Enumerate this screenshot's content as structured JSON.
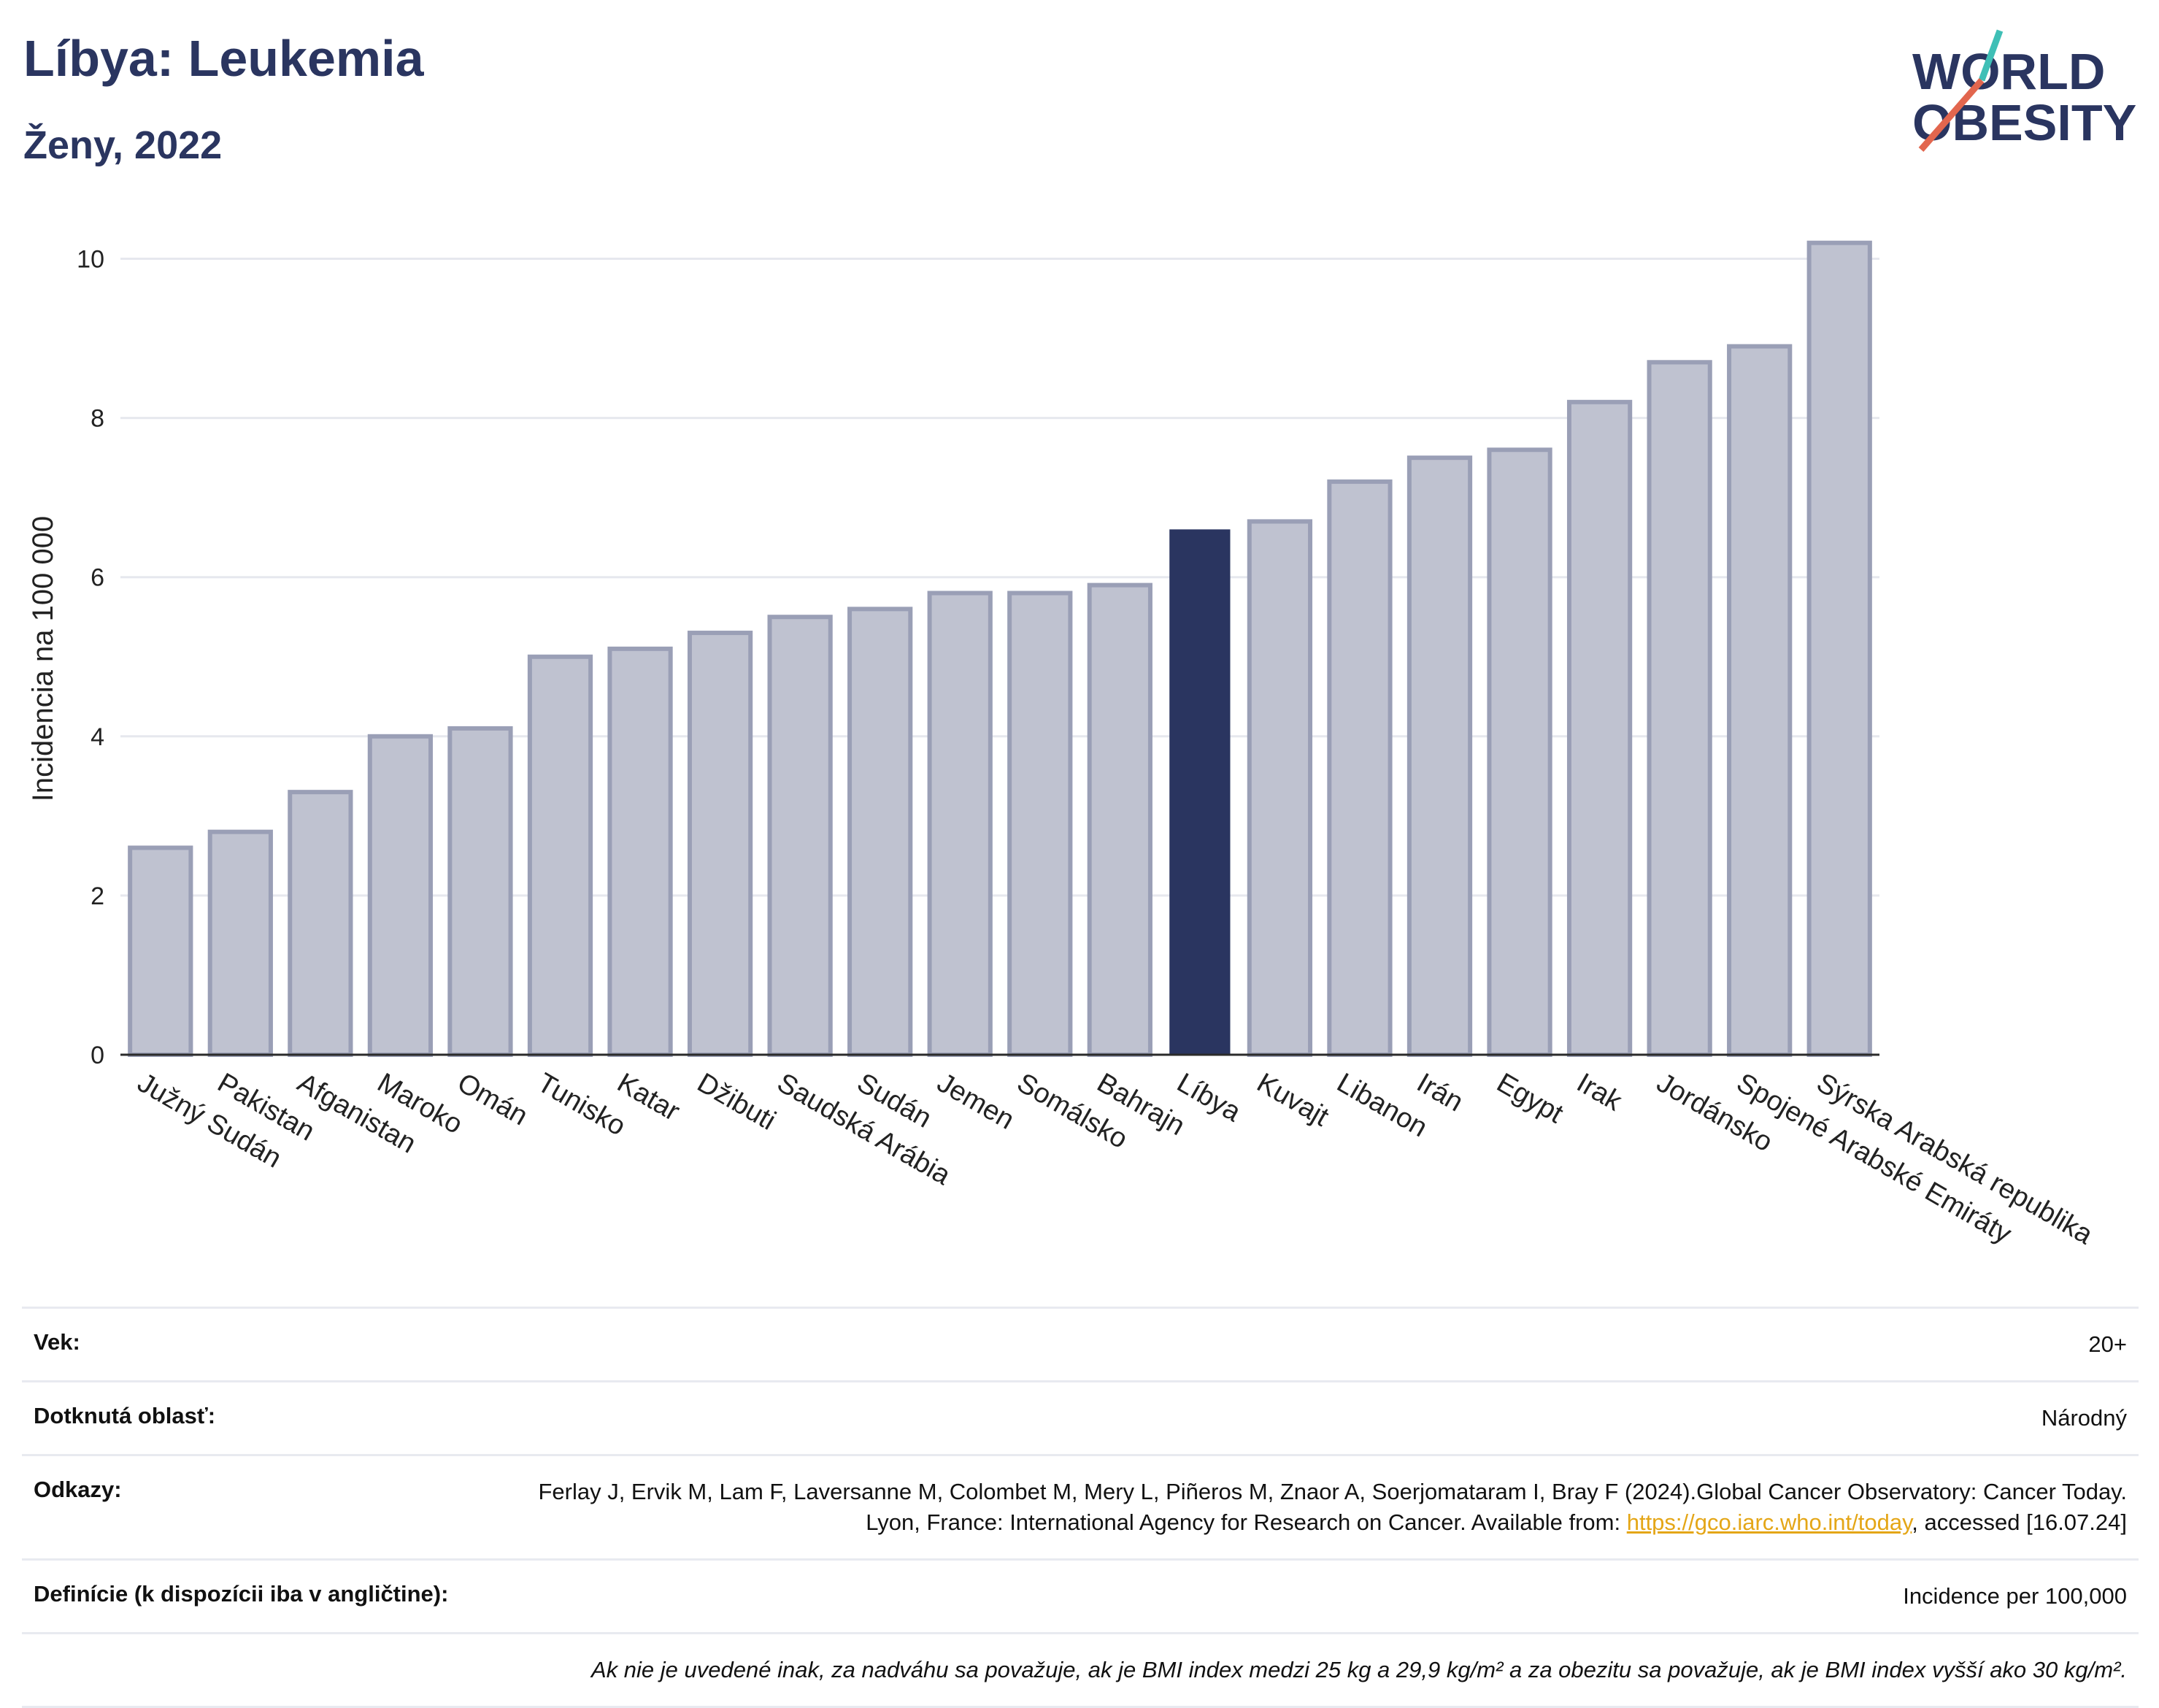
{
  "header": {
    "title": "Líbya: Leukemia",
    "subtitle": "Ženy, 2022"
  },
  "logo": {
    "line1": "WORLD",
    "line2": "OBESITY",
    "text_color": "#2a3560",
    "slash_colors": [
      "#3fbfb6",
      "#e2664e"
    ]
  },
  "chart_data": {
    "type": "bar",
    "ylabel": "Incidencia na 100 000",
    "ylim": [
      0,
      10.5
    ],
    "yticks": [
      0,
      2,
      4,
      6,
      8,
      10
    ],
    "grid": true,
    "categories": [
      "Južný Sudán",
      "Pakistan",
      "Afganistan",
      "Maroko",
      "Omán",
      "Tunisko",
      "Katar",
      "Džibuti",
      "Saudská Arábia",
      "Sudán",
      "Jemen",
      "Somálsko",
      "Bahrajn",
      "Líbya",
      "Kuvajt",
      "Libanon",
      "Irán",
      "Egypt",
      "Irak",
      "Jordánsko",
      "Spojené Arabské Emiráty",
      "Sýrska Arabská republika"
    ],
    "values": [
      2.6,
      2.8,
      3.3,
      4.0,
      4.1,
      5.0,
      5.1,
      5.3,
      5.5,
      5.6,
      5.8,
      5.8,
      5.9,
      6.6,
      6.7,
      7.2,
      7.5,
      7.6,
      8.2,
      8.7,
      8.9,
      10.2
    ],
    "highlight": "Líbya",
    "colors": {
      "bar": "#bfc2d0",
      "bar_border": "#9a9fb6",
      "highlight": "#2a3560",
      "grid": "#e6e8ee",
      "axis": "#2b2b2b"
    }
  },
  "meta": {
    "age_label": "Vek:",
    "age_value": "20+",
    "area_label": "Dotknutá oblasť:",
    "area_value": "Národný",
    "refs_label": "Odkazy:",
    "refs_text_1": "Ferlay J, Ervik M, Lam F, Laversanne M, Colombet M, Mery L, Piñeros M, Znaor A, Soerjomataram I, Bray F (2024).Global Cancer Observatory: Cancer Today. Lyon, France: International Agency for Research on Cancer. Available from: ",
    "refs_link": "https://gco.iarc.who.int/today",
    "refs_text_2": ", accessed [16.07.24]",
    "def_label": "Definície (k dispozícii iba v angličtine):",
    "def_value": "Incidence per 100,000",
    "note": "Ak nie je uvedené inak, za nadváhu sa považuje, ak je BMI index medzi 25 kg a 29,9 kg/m² a za obezitu sa považuje, ak je BMI index vyšší ako 30 kg/m²."
  }
}
